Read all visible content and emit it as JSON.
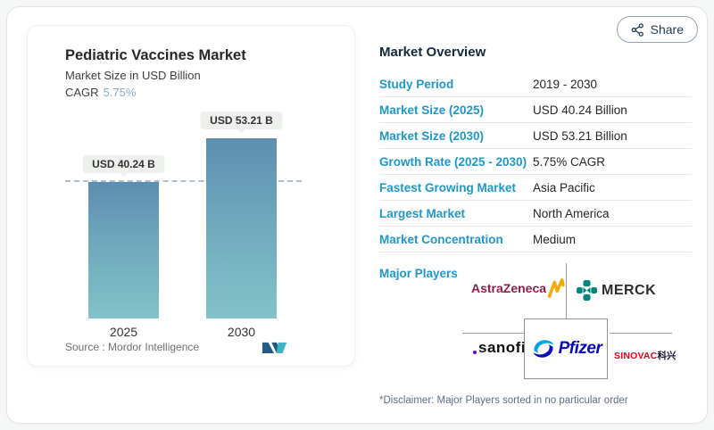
{
  "page": {
    "share_label": "Share"
  },
  "chart": {
    "title": "Pediatric Vaccines Market",
    "subtitle": "Market Size in USD Billion",
    "cagr_label": "CAGR",
    "cagr_value": "5.75%",
    "source": "Source :  Mordor Intelligence"
  },
  "chart_data": {
    "type": "bar",
    "title": "Pediatric Vaccines Market",
    "ylabel": "Market Size in USD Billion",
    "categories": [
      "2025",
      "2030"
    ],
    "values": [
      40.24,
      53.21
    ],
    "value_labels": [
      "USD 40.24 B",
      "USD 53.21 B"
    ],
    "cagr": "5.75%",
    "dashed_reference_value": 40.24,
    "ylim": [
      0,
      60
    ],
    "colors": {
      "bar_top": "#5d8eb1",
      "bar_bottom": "#82c2c8",
      "accent_blue": "#2196c4"
    }
  },
  "overview": {
    "heading": "Market Overview",
    "rows": [
      {
        "label": "Study Period",
        "value": "2019 - 2030"
      },
      {
        "label": "Market Size (2025)",
        "value": "USD 40.24 Billion"
      },
      {
        "label": "Market Size (2030)",
        "value": "USD 53.21 Billion"
      },
      {
        "label": "Growth Rate (2025 - 2030)",
        "value": "5.75% CAGR"
      },
      {
        "label": "Fastest Growing Market",
        "value": "Asia Pacific"
      },
      {
        "label": "Largest Market",
        "value": "North America"
      },
      {
        "label": "Market Concentration",
        "value": "Medium"
      }
    ],
    "major_players_label": "Major Players",
    "players": {
      "astrazeneca": "AstraZeneca",
      "merck": "MERCK",
      "sanofi": "sanofi",
      "pfizer": "Pfizer",
      "sinovac_en": "SINOVAC",
      "sinovac_cn": "科兴"
    },
    "disclaimer": "*Disclaimer: Major Players sorted in no particular order"
  },
  "icons": {
    "share": "share-nodes-icon",
    "mordor_logo": "mordor-intelligence-logo",
    "astrazeneca_mark": "astrazeneca-zigzag-icon",
    "merck_mark": "merck-cross-icon",
    "pfizer_mark": "pfizer-swoosh-icon"
  }
}
